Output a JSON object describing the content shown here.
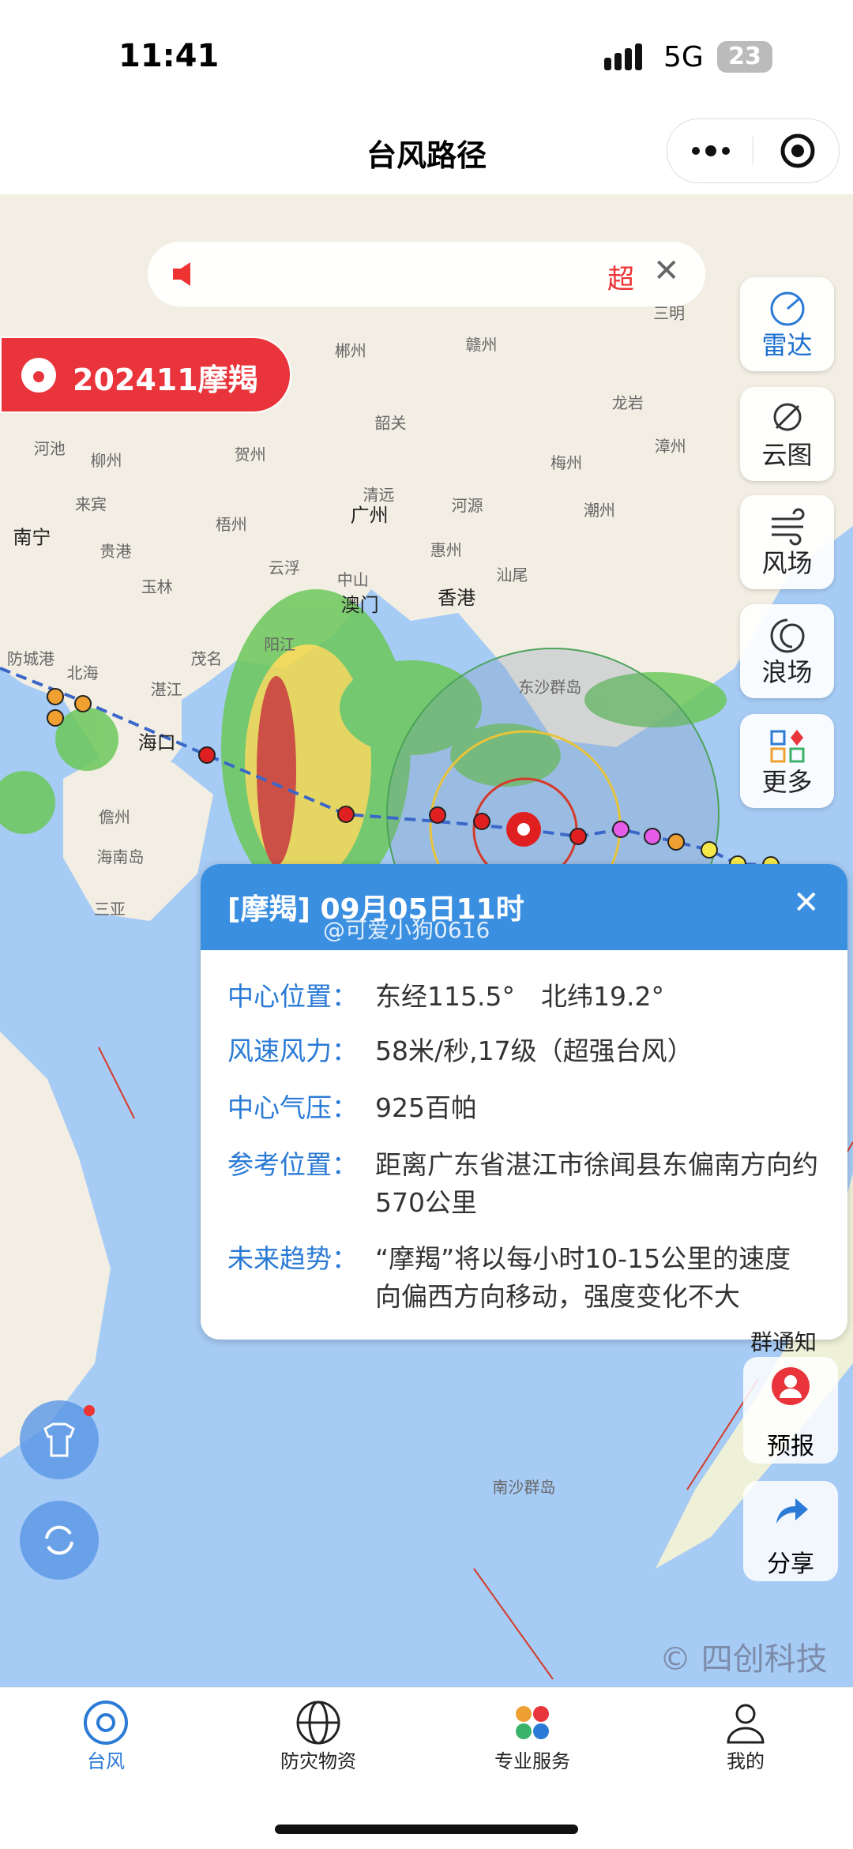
{
  "status_bar": {
    "time": "11:41",
    "network": "5G",
    "battery": "23"
  },
  "header": {
    "title": "台风路径"
  },
  "notice": {
    "text": "超"
  },
  "typhoon_badge": "202411摩羯",
  "side_buttons": [
    "雷达",
    "云图",
    "风场",
    "浪场",
    "更多"
  ],
  "map_labels": [
    "郴州",
    "赣州",
    "三明",
    "韶关",
    "龙岩",
    "河池",
    "柳州",
    "贺州",
    "梅州",
    "漳州",
    "来宾",
    "梧州",
    "清远",
    "广州",
    "河源",
    "潮州",
    "南宁",
    "贵港",
    "玉林",
    "云浮",
    "中山",
    "惠州",
    "汕尾",
    "澳门",
    "香港",
    "防城港",
    "北海",
    "茂名",
    "阳江",
    "湛江",
    "海口",
    "儋州",
    "海南岛",
    "三亚",
    "东沙群岛",
    "南沙群岛"
  ],
  "popup": {
    "title": "[摩羯] 09月05日11时",
    "watermark": "@可爱小狗0616",
    "rows": [
      {
        "label": "中心位置：",
        "value": "东经115.5°　北纬19.2°"
      },
      {
        "label": "风速风力：",
        "value": "58米/秒,17级（超强台风）"
      },
      {
        "label": "中心气压：",
        "value": "925百帕"
      },
      {
        "label": "参考位置：",
        "value": "距离广东省湛江市徐闻县东偏南方向约570公里"
      },
      {
        "label": "未来趋势：",
        "value": "“摩羯”将以每小时10-15公里的速度向偏西方向移动，强度变化不大"
      }
    ]
  },
  "float_buttons": {
    "group_notice": "群通知",
    "forecast": "预报",
    "share": "分享"
  },
  "copyright": "© 四创科技",
  "tabs": [
    "台风",
    "防灾物资",
    "专业服务",
    "我的"
  ]
}
